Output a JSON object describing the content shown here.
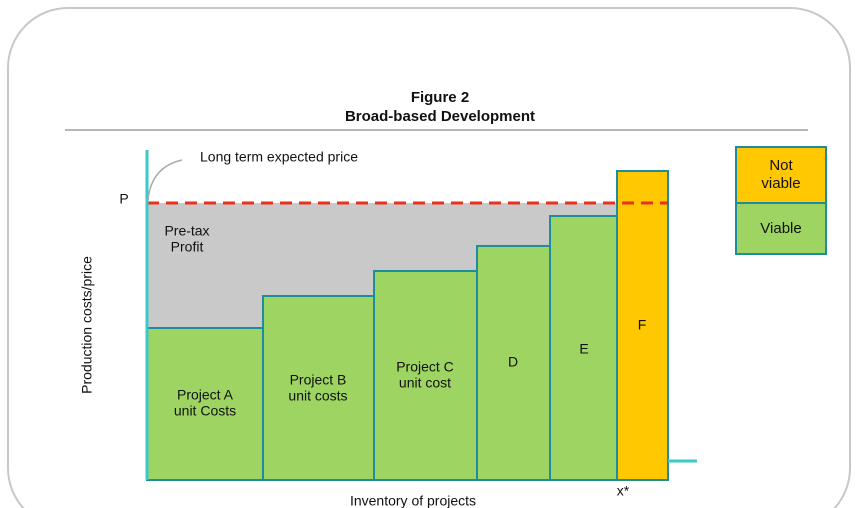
{
  "title": "Figure 2",
  "subtitle": "Broad-based Development",
  "y_axis_label": "Production costs/price",
  "x_axis_label": "Inventory of projects",
  "price_marker": "P",
  "price_label": "Long term expected price",
  "x_marker": "x*",
  "profit_label": [
    "Pre-tax",
    "Profit"
  ],
  "projects": [
    {
      "label": [
        "Project A",
        "unit Costs"
      ]
    },
    {
      "label": [
        "Project B",
        "unit costs"
      ]
    },
    {
      "label": [
        "Project C",
        "unit cost"
      ]
    },
    {
      "label": [
        "D"
      ]
    },
    {
      "label": [
        "E"
      ]
    },
    {
      "label": [
        "F"
      ]
    }
  ],
  "legend": [
    {
      "label": [
        "Not",
        "viable"
      ]
    },
    {
      "label": [
        "Viable"
      ]
    }
  ]
}
